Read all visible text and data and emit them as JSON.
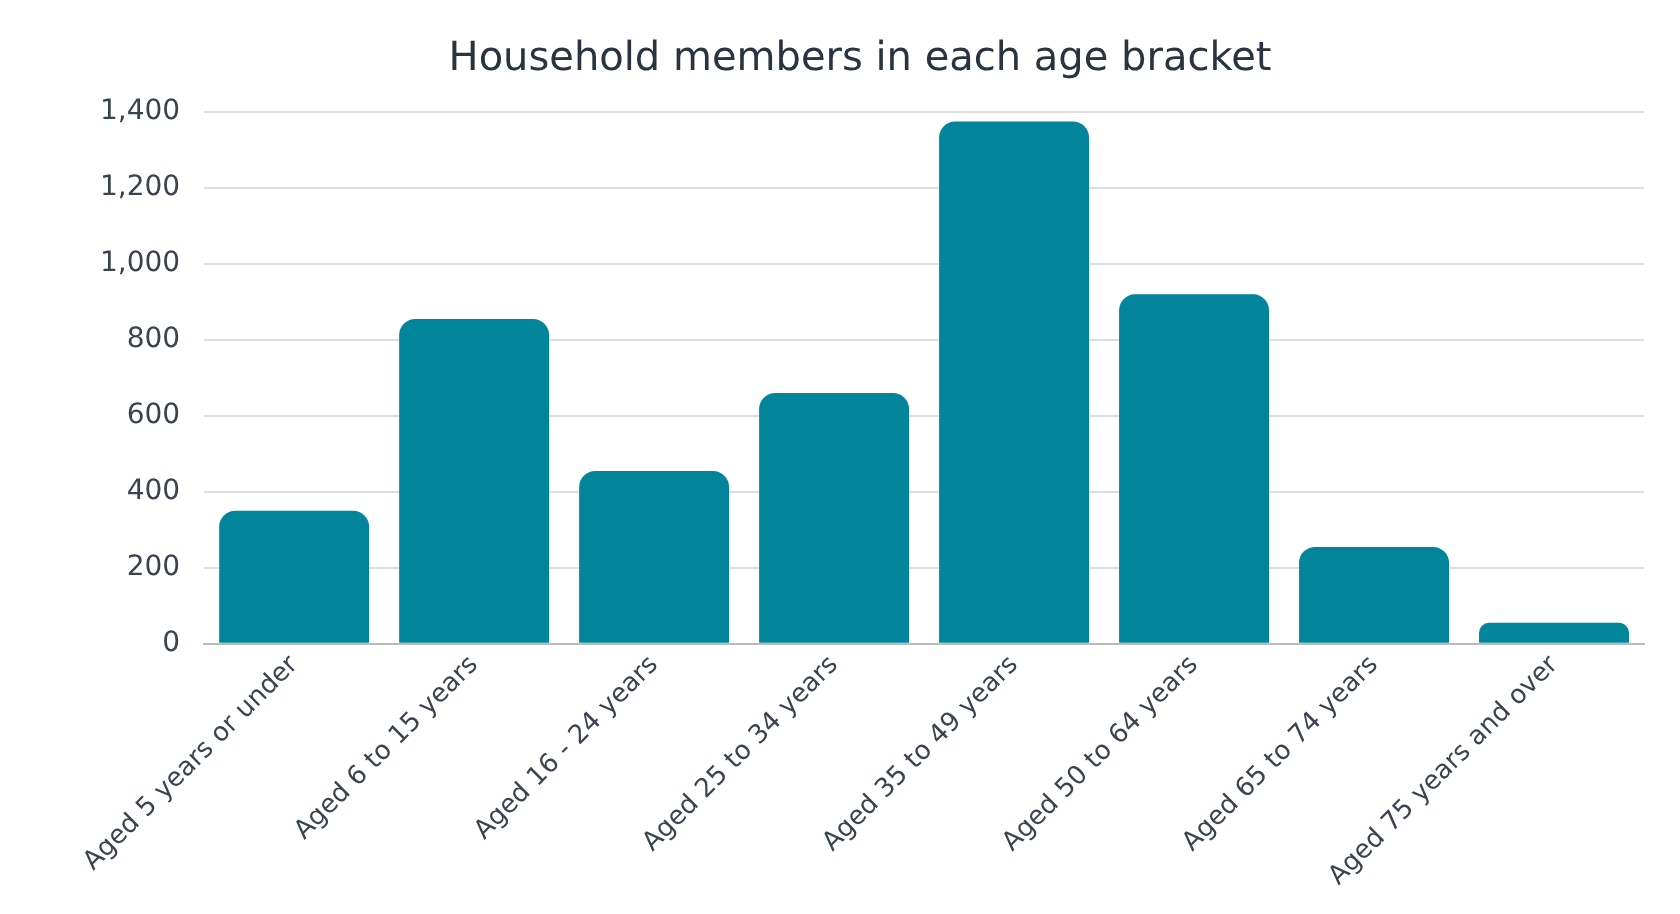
{
  "chart_data": {
    "type": "bar",
    "title": "Household members in each age bracket",
    "categories": [
      "Aged 5 years or under",
      "Aged 6 to 15 years",
      "Aged 16 - 24 years",
      "Aged 25 to 34 years",
      "Aged 35 to 49 years",
      "Aged 50 to 64 years",
      "Aged 65 to 74 years",
      "Aged 75 years and over"
    ],
    "values": [
      350,
      855,
      455,
      660,
      1375,
      920,
      255,
      55
    ],
    "color": "#02849b",
    "ylim": [
      0,
      1400
    ],
    "yticks": [
      0,
      200,
      400,
      600,
      800,
      {
        "value": 1000,
        "label": "1,000"
      },
      {
        "value": 1200,
        "label": "1,200"
      },
      {
        "value": 1400,
        "label": "1,400"
      }
    ],
    "grid": "y",
    "legend": false
  }
}
